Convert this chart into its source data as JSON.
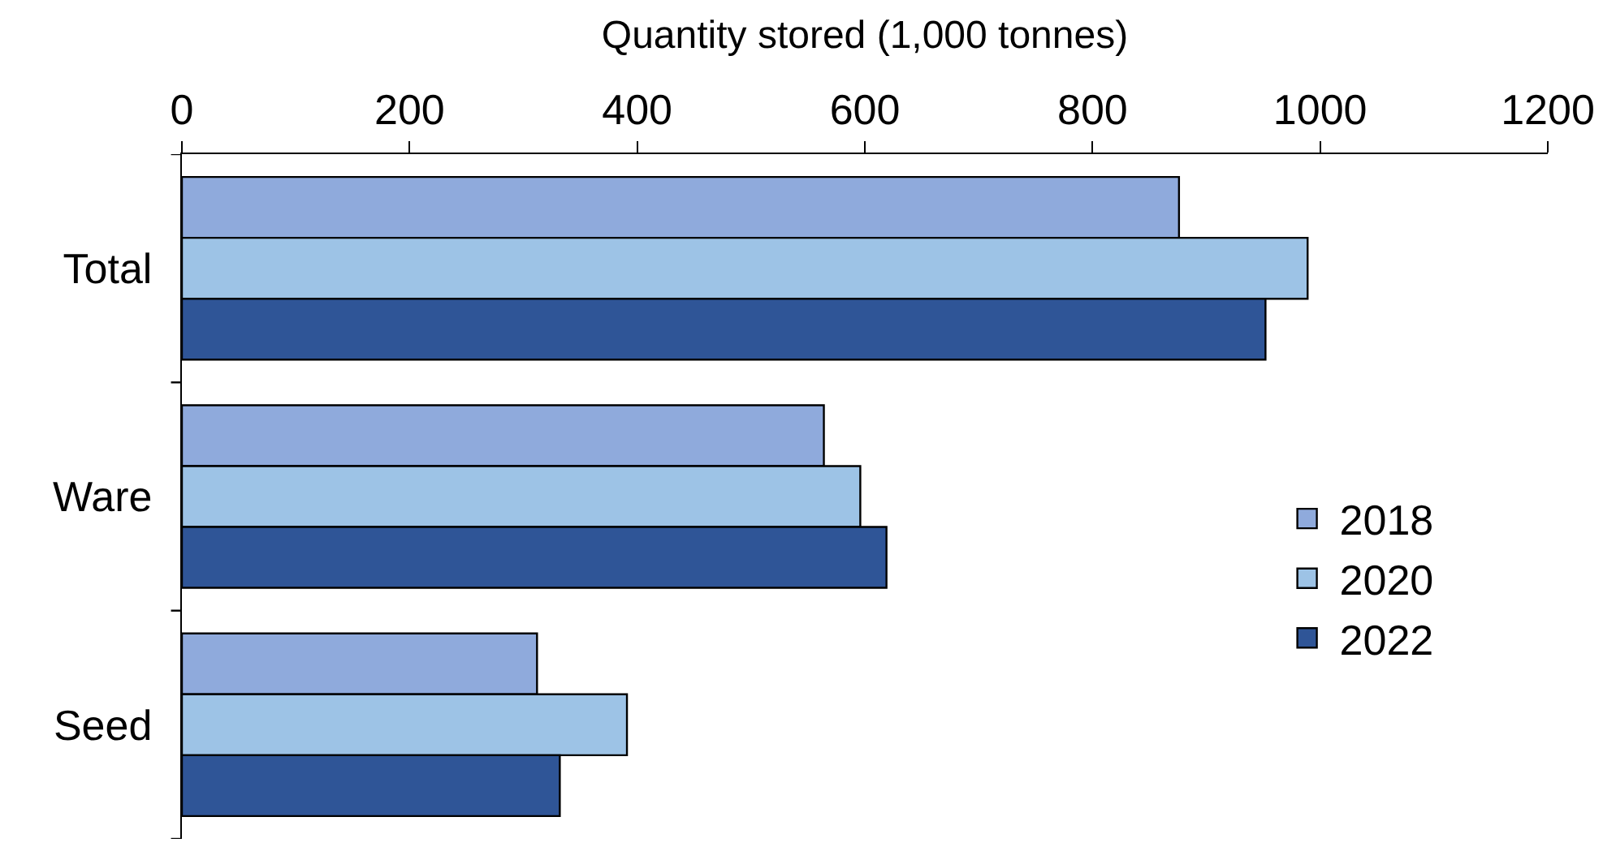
{
  "chart_data": {
    "type": "bar",
    "orientation": "horizontal",
    "xlabel": "Quantity stored (1,000 tonnes)",
    "categories": [
      "Total",
      "Ware",
      "Seed"
    ],
    "series": [
      {
        "name": "2018",
        "color": "#8faadc",
        "values": [
          876,
          564,
          312
        ]
      },
      {
        "name": "2020",
        "color": "#9dc3e6",
        "values": [
          989,
          596,
          391
        ]
      },
      {
        "name": "2022",
        "color": "#2f5597",
        "values": [
          952,
          619,
          332
        ]
      }
    ],
    "xlim": [
      0,
      1200
    ],
    "xticks": [
      0,
      200,
      400,
      600,
      800,
      1000,
      1200
    ],
    "legend": "right"
  }
}
